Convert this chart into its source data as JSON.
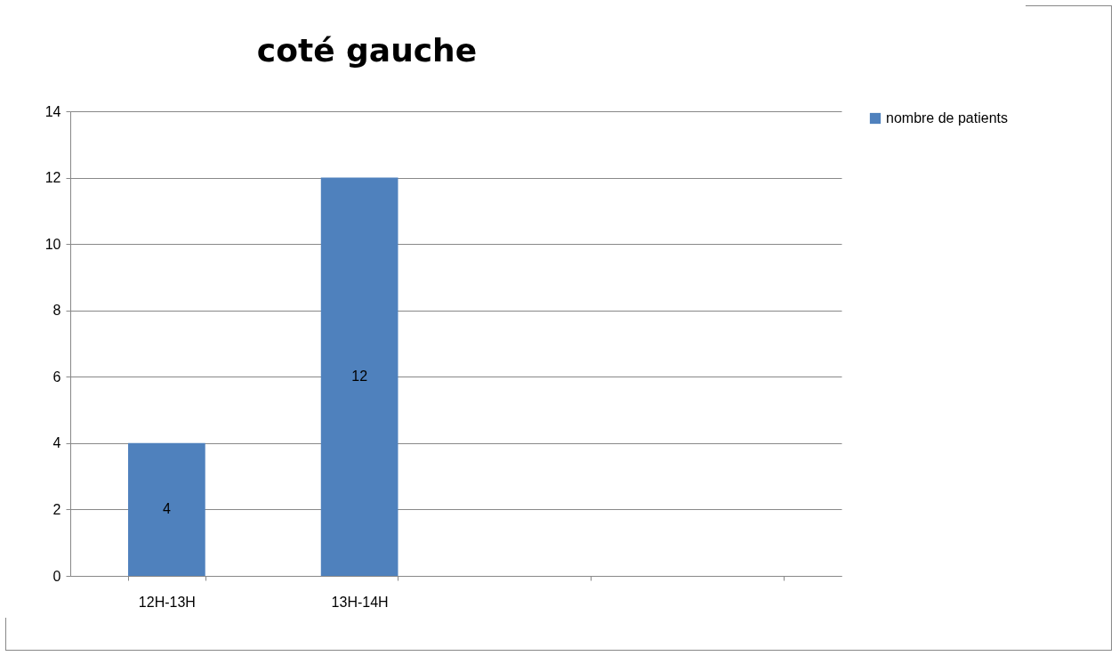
{
  "chart_data": {
    "type": "bar",
    "title": "coté gauche",
    "categories": [
      "12H-13H",
      "13H-14H",
      null,
      null
    ],
    "series": [
      {
        "name": "nombre de patients",
        "color": "#4f81bd",
        "values": [
          4,
          12,
          null,
          null
        ]
      }
    ],
    "ylim": [
      0,
      14
    ],
    "yticks": [
      0,
      2,
      4,
      6,
      8,
      10,
      12,
      14
    ],
    "grid": "y",
    "legend": "right",
    "data_labels": true
  }
}
